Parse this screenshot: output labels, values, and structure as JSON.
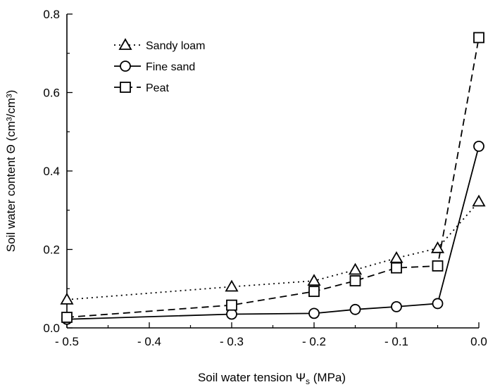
{
  "chart_data": {
    "type": "line",
    "title": "",
    "xlabel": "Soil water tension Ψs (MPa)",
    "xlabel_main": "Soil water tension Ψ",
    "xlabel_sub": "s",
    "xlabel_unit": " (MPa)",
    "ylabel": "Soil water content Θ (cm³/cm³)",
    "xlim": [
      -0.5,
      0.0
    ],
    "ylim": [
      0.0,
      0.8
    ],
    "x_ticks": [
      -0.5,
      -0.4,
      -0.3,
      -0.2,
      -0.1,
      0.0
    ],
    "x_tick_labels": [
      "- 0.5",
      "- 0.4",
      "- 0.3",
      "- 0.2",
      "- 0.1",
      "0.0"
    ],
    "y_ticks": [
      0.0,
      0.2,
      0.4,
      0.6,
      0.8
    ],
    "y_tick_labels": [
      "0.0",
      "0.2",
      "0.4",
      "0.6",
      "0.8"
    ],
    "grid": false,
    "legend_position": "top-left",
    "series": [
      {
        "name": "Sandy loam",
        "line_style": "dotted",
        "marker": "triangle",
        "x": [
          -0.5,
          -0.3,
          -0.2,
          -0.15,
          -0.1,
          -0.05,
          0.0
        ],
        "y": [
          0.072,
          0.105,
          0.12,
          0.148,
          0.178,
          0.203,
          0.322
        ]
      },
      {
        "name": "Fine sand",
        "line_style": "solid",
        "marker": "circle",
        "x": [
          -0.5,
          -0.3,
          -0.2,
          -0.15,
          -0.1,
          -0.05,
          0.0
        ],
        "y": [
          0.022,
          0.035,
          0.037,
          0.047,
          0.054,
          0.062,
          0.463
        ]
      },
      {
        "name": "Peat",
        "line_style": "dashed",
        "marker": "square",
        "x": [
          -0.5,
          -0.3,
          -0.2,
          -0.15,
          -0.1,
          -0.05,
          0.0
        ],
        "y": [
          0.027,
          0.058,
          0.093,
          0.12,
          0.153,
          0.158,
          0.74
        ]
      }
    ]
  }
}
